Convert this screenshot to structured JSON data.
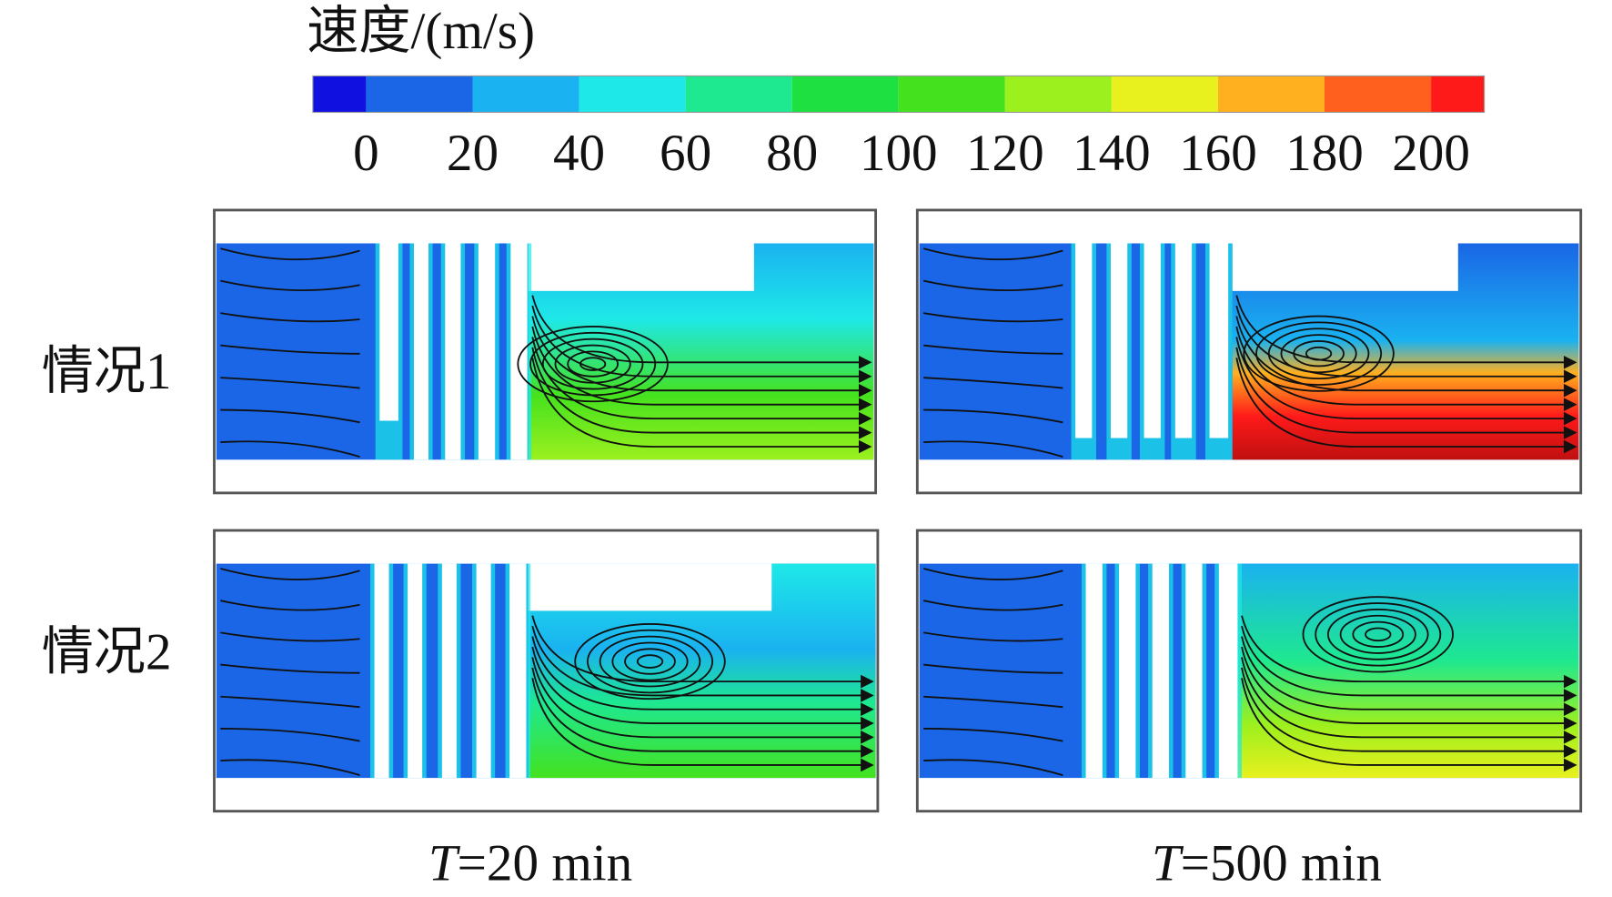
{
  "colorbar": {
    "title": "速度/(m/s)",
    "ticks": [
      0,
      20,
      40,
      60,
      80,
      100,
      120,
      140,
      160,
      180,
      200
    ]
  },
  "rows": [
    {
      "label": "情况1"
    },
    {
      "label": "情况2"
    }
  ],
  "columns": [
    {
      "symbol": "T",
      "text": "=20 min"
    },
    {
      "symbol": "T",
      "text": "=500 min"
    }
  ]
}
